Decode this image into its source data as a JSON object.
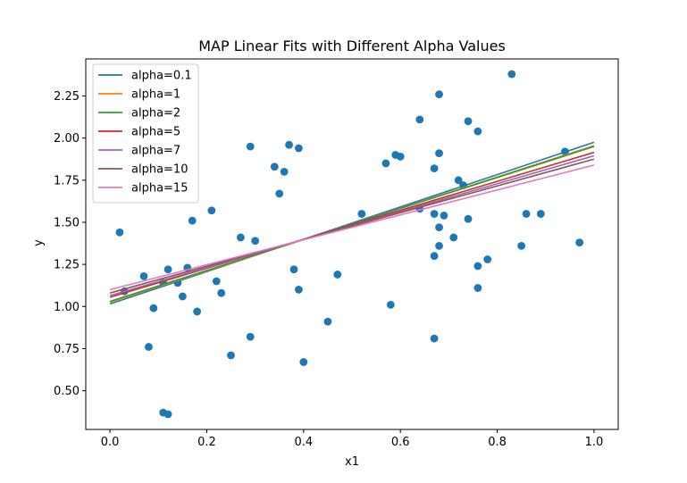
{
  "chart_data": {
    "type": "scatter",
    "title": "MAP Linear Fits with Different Alpha Values",
    "xlabel": "x1",
    "ylabel": "y",
    "xlim": [
      -0.05,
      1.05
    ],
    "ylim": [
      0.27,
      2.47
    ],
    "xticks": [
      "0.0",
      "0.2",
      "0.4",
      "0.6",
      "0.8",
      "1.0"
    ],
    "yticks": [
      "0.50",
      "0.75",
      "1.00",
      "1.25",
      "1.50",
      "1.75",
      "2.00",
      "2.25"
    ],
    "grid": false,
    "legend_position": "top-left",
    "scatter": {
      "color": "#1f77b4",
      "points": [
        [
          0.02,
          1.44
        ],
        [
          0.03,
          1.09
        ],
        [
          0.07,
          1.18
        ],
        [
          0.08,
          0.76
        ],
        [
          0.09,
          0.99
        ],
        [
          0.11,
          1.14
        ],
        [
          0.11,
          0.37
        ],
        [
          0.12,
          0.36
        ],
        [
          0.12,
          1.22
        ],
        [
          0.14,
          1.14
        ],
        [
          0.15,
          1.06
        ],
        [
          0.16,
          1.23
        ],
        [
          0.17,
          1.51
        ],
        [
          0.18,
          0.97
        ],
        [
          0.21,
          1.57
        ],
        [
          0.22,
          1.15
        ],
        [
          0.23,
          1.08
        ],
        [
          0.25,
          0.71
        ],
        [
          0.27,
          1.41
        ],
        [
          0.29,
          1.95
        ],
        [
          0.29,
          0.82
        ],
        [
          0.3,
          1.39
        ],
        [
          0.34,
          1.83
        ],
        [
          0.35,
          1.67
        ],
        [
          0.36,
          1.8
        ],
        [
          0.37,
          1.96
        ],
        [
          0.38,
          1.22
        ],
        [
          0.39,
          1.94
        ],
        [
          0.39,
          1.1
        ],
        [
          0.4,
          0.67
        ],
        [
          0.45,
          0.91
        ],
        [
          0.47,
          1.19
        ],
        [
          0.52,
          1.55
        ],
        [
          0.57,
          1.85
        ],
        [
          0.58,
          1.01
        ],
        [
          0.59,
          1.9
        ],
        [
          0.6,
          1.89
        ],
        [
          0.64,
          2.11
        ],
        [
          0.64,
          1.58
        ],
        [
          0.67,
          1.82
        ],
        [
          0.67,
          1.55
        ],
        [
          0.67,
          1.3
        ],
        [
          0.67,
          0.81
        ],
        [
          0.68,
          2.26
        ],
        [
          0.68,
          1.36
        ],
        [
          0.68,
          1.47
        ],
        [
          0.68,
          1.91
        ],
        [
          0.69,
          1.54
        ],
        [
          0.71,
          1.41
        ],
        [
          0.72,
          1.75
        ],
        [
          0.73,
          1.72
        ],
        [
          0.74,
          2.1
        ],
        [
          0.74,
          1.52
        ],
        [
          0.76,
          1.24
        ],
        [
          0.76,
          2.04
        ],
        [
          0.76,
          1.11
        ],
        [
          0.78,
          1.28
        ],
        [
          0.83,
          2.38
        ],
        [
          0.85,
          1.36
        ],
        [
          0.86,
          1.55
        ],
        [
          0.89,
          1.55
        ],
        [
          0.94,
          1.92
        ],
        [
          0.97,
          1.38
        ]
      ]
    },
    "series": [
      {
        "name": "alpha=0.1",
        "color": "#1f77b4",
        "x": [
          0,
          1
        ],
        "y": [
          1.015,
          1.975
        ]
      },
      {
        "name": "alpha=1",
        "color": "#ff7f0e",
        "x": [
          0,
          1
        ],
        "y": [
          1.025,
          1.955
        ]
      },
      {
        "name": "alpha=2",
        "color": "#2ca02c",
        "x": [
          0,
          1
        ],
        "y": [
          1.03,
          1.95
        ]
      },
      {
        "name": "alpha=5",
        "color": "#d62728",
        "x": [
          0,
          1
        ],
        "y": [
          1.055,
          1.915
        ]
      },
      {
        "name": "alpha=7",
        "color": "#9467bd",
        "x": [
          0,
          1
        ],
        "y": [
          1.065,
          1.895
        ]
      },
      {
        "name": "alpha=10",
        "color": "#8c564b",
        "x": [
          0,
          1
        ],
        "y": [
          1.08,
          1.875
        ]
      },
      {
        "name": "alpha=15",
        "color": "#e377c2",
        "x": [
          0,
          1
        ],
        "y": [
          1.1,
          1.84
        ]
      }
    ]
  }
}
